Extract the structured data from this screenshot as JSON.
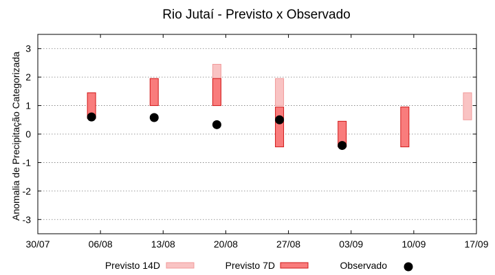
{
  "chart_data": {
    "type": "bar",
    "title": "Rio Jutaí - Previsto x Observado",
    "ylabel": "Anomalia de Precipitação Categorizada",
    "xlabel": "",
    "xlim": [
      "2024-07-30",
      "2024-09-17"
    ],
    "ylim": [
      -3.5,
      3.5
    ],
    "x_ticks": [
      {
        "date": "2024-07-30",
        "label": "30/07"
      },
      {
        "date": "2024-08-06",
        "label": "06/08"
      },
      {
        "date": "2024-08-13",
        "label": "13/08"
      },
      {
        "date": "2024-08-20",
        "label": "20/08"
      },
      {
        "date": "2024-08-27",
        "label": "27/08"
      },
      {
        "date": "2024-09-03",
        "label": "03/09"
      },
      {
        "date": "2024-09-10",
        "label": "10/09"
      },
      {
        "date": "2024-09-17",
        "label": "17/09"
      }
    ],
    "y_ticks": [
      -3,
      -2,
      -1,
      0,
      1,
      2,
      3
    ],
    "y_tick_labels": [
      "-3",
      "-2",
      "-1",
      "0",
      "1",
      "2",
      "3"
    ],
    "grid": "horizontal dotted",
    "legend_position": "bottom",
    "series": [
      {
        "name": "Previsto 14D",
        "kind": "range",
        "fill": "#f9c3c3",
        "stroke": "#f19a9a",
        "points": [
          {
            "x": "2024-08-19",
            "low": 1.0,
            "high": 2.45
          },
          {
            "x": "2024-08-26",
            "low": 1.0,
            "high": 1.95
          },
          {
            "x": "2024-09-16",
            "low": 0.5,
            "high": 1.45
          }
        ]
      },
      {
        "name": "Previsto 7D",
        "kind": "range",
        "fill": "#f97c7c",
        "stroke": "#d01818",
        "points": [
          {
            "x": "2024-08-05",
            "low": 0.55,
            "high": 1.45
          },
          {
            "x": "2024-08-12",
            "low": 1.0,
            "high": 1.95
          },
          {
            "x": "2024-08-19",
            "low": 1.0,
            "high": 1.95
          },
          {
            "x": "2024-08-26",
            "low": -0.45,
            "high": 0.95
          },
          {
            "x": "2024-09-02",
            "low": -0.45,
            "high": 0.45
          },
          {
            "x": "2024-09-09",
            "low": -0.45,
            "high": 0.95
          }
        ]
      },
      {
        "name": "Observado",
        "kind": "scatter",
        "color": "#000000",
        "points": [
          {
            "x": "2024-08-05",
            "y": 0.6
          },
          {
            "x": "2024-08-12",
            "y": 0.58
          },
          {
            "x": "2024-08-19",
            "y": 0.33
          },
          {
            "x": "2024-08-26",
            "y": 0.5
          },
          {
            "x": "2024-09-02",
            "y": -0.4
          }
        ]
      }
    ]
  }
}
